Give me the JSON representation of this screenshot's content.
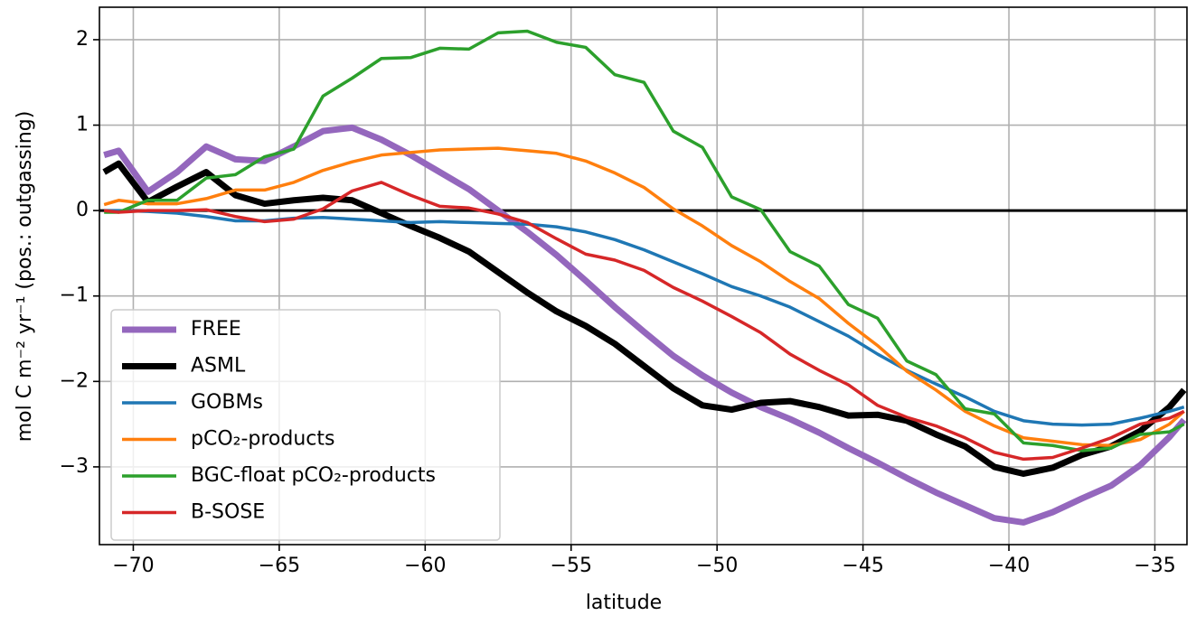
{
  "chart_data": {
    "type": "line",
    "x_label": "latitude",
    "y_label": "mol C m⁻² yr⁻¹ (pos.: outgassing)",
    "x": [
      -71,
      -70.5,
      -69.5,
      -68.5,
      -67.5,
      -66.5,
      -65.5,
      -64.5,
      -63.5,
      -62.5,
      -61.5,
      -60.5,
      -59.5,
      -58.5,
      -57.5,
      -56.5,
      -55.5,
      -54.5,
      -53.5,
      -52.5,
      -51.5,
      -50.5,
      -49.5,
      -48.5,
      -47.5,
      -46.5,
      -45.5,
      -44.5,
      -43.5,
      -42.5,
      -41.5,
      -40.5,
      -39.5,
      -38.5,
      -37.5,
      -36.5,
      -35.5,
      -34.5,
      -34
    ],
    "xlim": [
      -71.16,
      -33.9
    ],
    "ylim": [
      -3.91,
      2.38
    ],
    "xticks": [
      {
        "value": -70,
        "label": "−70"
      },
      {
        "value": -65,
        "label": "−65"
      },
      {
        "value": -60,
        "label": "−60"
      },
      {
        "value": -55,
        "label": "−55"
      },
      {
        "value": -50,
        "label": "−50"
      },
      {
        "value": -45,
        "label": "−45"
      },
      {
        "value": -40,
        "label": "−40"
      },
      {
        "value": -35,
        "label": "−35"
      }
    ],
    "yticks": [
      {
        "value": -3,
        "label": "−3"
      },
      {
        "value": -2,
        "label": "−2"
      },
      {
        "value": -1,
        "label": "−1"
      },
      0,
      1,
      2
    ],
    "grid": true,
    "hline": 0,
    "legend": "lower left",
    "series": [
      {
        "name": "FREE",
        "color": "#9467bd",
        "width": 7,
        "values": [
          0.65,
          0.7,
          0.22,
          0.45,
          0.75,
          0.6,
          0.58,
          0.75,
          0.93,
          0.97,
          0.83,
          0.65,
          0.45,
          0.25,
          0.0,
          -0.25,
          -0.52,
          -0.82,
          -1.13,
          -1.42,
          -1.7,
          -1.93,
          -2.13,
          -2.3,
          -2.44,
          -2.6,
          -2.78,
          -2.95,
          -3.13,
          -3.3,
          -3.45,
          -3.6,
          -3.65,
          -3.53,
          -3.37,
          -3.22,
          -2.98,
          -2.65,
          -2.45
        ]
      },
      {
        "name": "ASML",
        "color": "#000000",
        "width": 7,
        "values": [
          0.45,
          0.55,
          0.1,
          0.28,
          0.45,
          0.18,
          0.08,
          0.12,
          0.15,
          0.12,
          -0.03,
          -0.18,
          -0.32,
          -0.48,
          -0.72,
          -0.96,
          -1.18,
          -1.35,
          -1.56,
          -1.82,
          -2.08,
          -2.28,
          -2.33,
          -2.25,
          -2.23,
          -2.3,
          -2.4,
          -2.39,
          -2.46,
          -2.62,
          -2.76,
          -3.0,
          -3.08,
          -3.01,
          -2.86,
          -2.76,
          -2.58,
          -2.3,
          -2.1
        ]
      },
      {
        "name": "GOBMs",
        "color": "#1f77b4",
        "width": 3.5,
        "values": [
          0.0,
          0.0,
          -0.01,
          -0.03,
          -0.07,
          -0.12,
          -0.12,
          -0.09,
          -0.08,
          -0.1,
          -0.12,
          -0.14,
          -0.13,
          -0.14,
          -0.15,
          -0.16,
          -0.19,
          -0.25,
          -0.34,
          -0.46,
          -0.6,
          -0.74,
          -0.89,
          -1.0,
          -1.13,
          -1.3,
          -1.47,
          -1.68,
          -1.87,
          -2.03,
          -2.18,
          -2.35,
          -2.46,
          -2.5,
          -2.51,
          -2.5,
          -2.43,
          -2.35,
          -2.3
        ]
      },
      {
        "name": "pCO₂-products",
        "color": "#ff7f0e",
        "width": 3.5,
        "values": [
          0.07,
          0.12,
          0.08,
          0.08,
          0.14,
          0.24,
          0.24,
          0.33,
          0.47,
          0.57,
          0.65,
          0.68,
          0.71,
          0.72,
          0.73,
          0.7,
          0.67,
          0.58,
          0.44,
          0.27,
          0.02,
          -0.18,
          -0.41,
          -0.6,
          -0.83,
          -1.03,
          -1.32,
          -1.58,
          -1.88,
          -2.1,
          -2.35,
          -2.52,
          -2.66,
          -2.7,
          -2.74,
          -2.75,
          -2.68,
          -2.5,
          -2.35
        ]
      },
      {
        "name": "BGC-float pCO₂-products",
        "color": "#2ca02c",
        "width": 3.5,
        "values": [
          -0.02,
          -0.02,
          0.12,
          0.12,
          0.38,
          0.42,
          0.63,
          0.72,
          1.34,
          1.55,
          1.78,
          1.79,
          1.9,
          1.89,
          2.08,
          2.1,
          1.97,
          1.91,
          1.59,
          1.5,
          0.93,
          0.74,
          0.16,
          0.01,
          -0.48,
          -0.65,
          -1.1,
          -1.26,
          -1.76,
          -1.92,
          -2.32,
          -2.38,
          -2.72,
          -2.75,
          -2.81,
          -2.78,
          -2.62,
          -2.59,
          -2.5
        ]
      },
      {
        "name": "B-SOSE",
        "color": "#d62728",
        "width": 3.5,
        "values": [
          0.0,
          -0.02,
          0.0,
          0.0,
          0.01,
          -0.07,
          -0.13,
          -0.1,
          0.02,
          0.23,
          0.33,
          0.18,
          0.05,
          0.03,
          -0.04,
          -0.14,
          -0.33,
          -0.51,
          -0.58,
          -0.7,
          -0.9,
          -1.06,
          -1.24,
          -1.43,
          -1.68,
          -1.87,
          -2.04,
          -2.28,
          -2.42,
          -2.52,
          -2.66,
          -2.83,
          -2.91,
          -2.89,
          -2.78,
          -2.66,
          -2.5,
          -2.43,
          -2.35
        ]
      }
    ]
  }
}
